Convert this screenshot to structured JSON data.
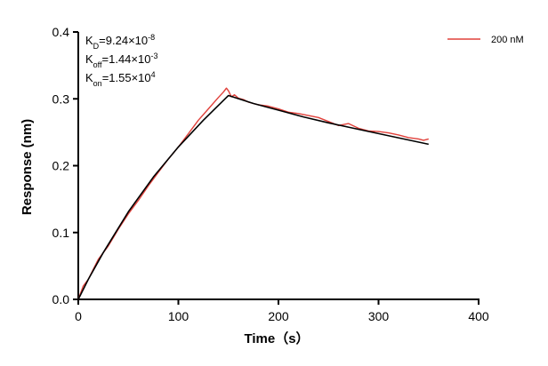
{
  "chart_data": {
    "type": "line",
    "xlabel": "Time（s）",
    "ylabel": "Response (nm)",
    "xlim": [
      0,
      400
    ],
    "ylim": [
      0,
      0.4
    ],
    "x_ticks": [
      0,
      100,
      200,
      300,
      400
    ],
    "x_tick_labels": [
      "0",
      "100",
      "200",
      "300",
      "400"
    ],
    "y_ticks": [
      0,
      0.1,
      0.2,
      0.3,
      0.4
    ],
    "y_tick_labels": [
      "0.0",
      "0.1",
      "0.2",
      "0.3",
      "0.4"
    ],
    "grid": false,
    "legend_position": "top-right",
    "annotations": [
      {
        "base": "K",
        "sub": "D",
        "rest": "=9.24×10",
        "sup": "-8"
      },
      {
        "base": "K",
        "sub": "off",
        "rest": "=1.44×10",
        "sup": "-3"
      },
      {
        "base": "K",
        "sub": "on",
        "rest": "=1.55×10",
        "sup": "4"
      }
    ],
    "series": [
      {
        "name": "200 nM",
        "color": "#e0403a",
        "x": [
          0,
          5,
          10,
          15,
          20,
          30,
          40,
          50,
          60,
          70,
          80,
          90,
          100,
          110,
          120,
          130,
          140,
          145,
          148,
          150,
          153,
          156,
          160,
          165,
          170,
          180,
          190,
          200,
          210,
          220,
          230,
          240,
          250,
          260,
          270,
          280,
          290,
          300,
          310,
          320,
          330,
          340,
          345,
          350
        ],
        "y": [
          0.0,
          0.02,
          0.03,
          0.045,
          0.06,
          0.08,
          0.105,
          0.128,
          0.148,
          0.17,
          0.19,
          0.21,
          0.228,
          0.248,
          0.268,
          0.285,
          0.302,
          0.31,
          0.316,
          0.312,
          0.303,
          0.306,
          0.301,
          0.299,
          0.295,
          0.291,
          0.289,
          0.285,
          0.28,
          0.278,
          0.275,
          0.272,
          0.266,
          0.26,
          0.263,
          0.256,
          0.252,
          0.251,
          0.249,
          0.246,
          0.242,
          0.24,
          0.238,
          0.24
        ]
      },
      {
        "name": "",
        "color": "#000000",
        "x": [
          0,
          10,
          25,
          50,
          75,
          100,
          125,
          150,
          175,
          200,
          225,
          250,
          275,
          300,
          325,
          350
        ],
        "y": [
          0.0,
          0.03,
          0.07,
          0.131,
          0.183,
          0.228,
          0.268,
          0.305,
          0.293,
          0.283,
          0.273,
          0.264,
          0.256,
          0.248,
          0.24,
          0.232
        ]
      }
    ]
  }
}
